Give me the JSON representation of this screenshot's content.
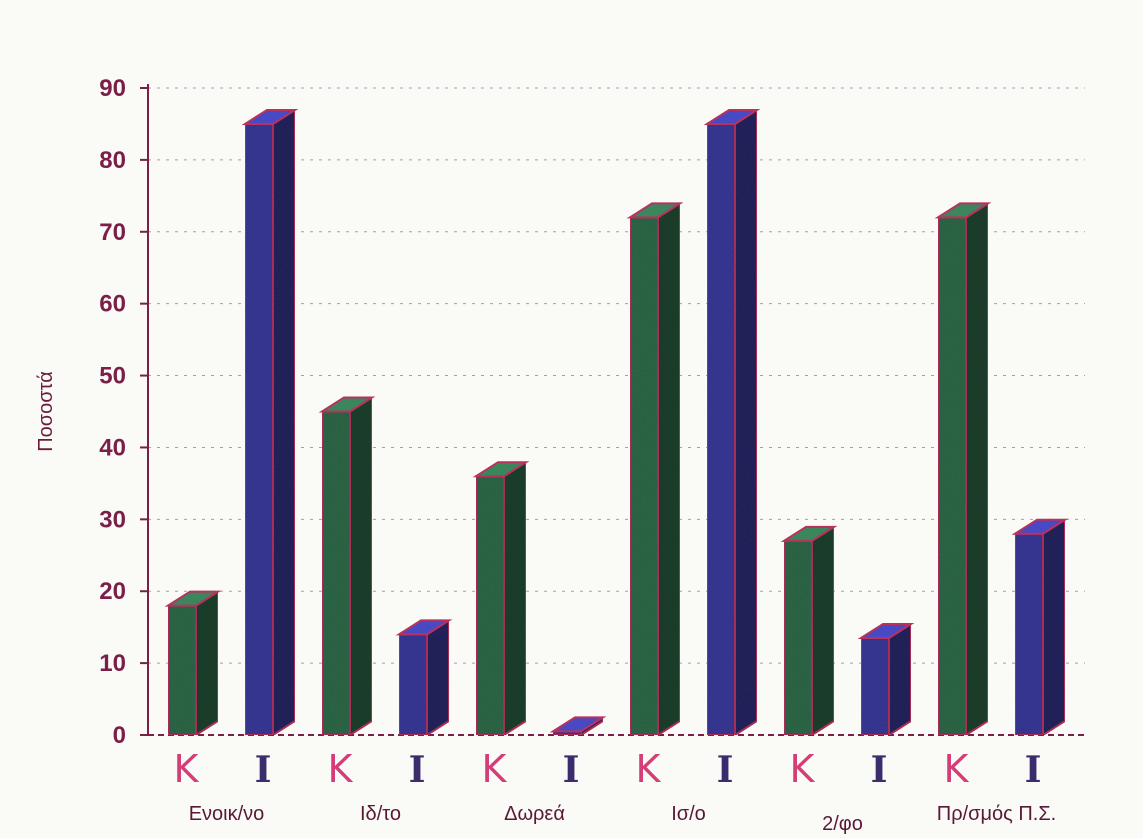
{
  "chart_data": {
    "type": "bar",
    "ylabel": "Ποσοστά",
    "ylim": [
      0,
      90
    ],
    "yticks": [
      0,
      10,
      20,
      30,
      40,
      50,
      60,
      70,
      80,
      90
    ],
    "grid": true,
    "categories": [
      "Ενοικ/νο",
      "Ιδ/το",
      "Δωρεά",
      "Ισ/ο",
      "2/φο",
      "Πρ/σμός Π.Σ."
    ],
    "series": [
      {
        "name": "Κ",
        "color": "#2f6b4a",
        "values": [
          18,
          45,
          36,
          72,
          27,
          72
        ]
      },
      {
        "name": "Ι",
        "color": "#3a3a9c",
        "values": [
          85,
          14,
          0.5,
          85,
          13.5,
          28
        ]
      }
    ]
  },
  "colors": {
    "bar_outline": "#b8325e",
    "axis": "#7b1e48",
    "grid": "#6a4a8a"
  }
}
